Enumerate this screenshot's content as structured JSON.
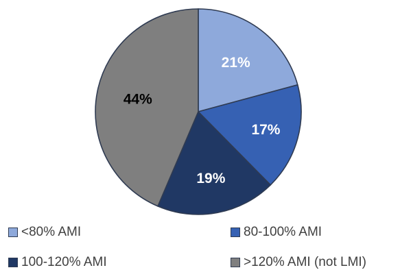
{
  "chart_data": {
    "type": "pie",
    "title": "",
    "slices": [
      {
        "label": "<80% AMI",
        "value": 21,
        "display": "21%",
        "color": "#8EA9DB",
        "label_color": "#ffffff"
      },
      {
        "label": "80-100% AMI",
        "value": 17,
        "display": "17%",
        "color": "#3661B3",
        "label_color": "#ffffff"
      },
      {
        "label": "100-120% AMI",
        "value": 19,
        "display": "19%",
        "color": "#203864",
        "label_color": "#ffffff"
      },
      {
        "label": ">120% AMI (not LMI)",
        "value": 44,
        "display": "44%",
        "color": "#7F7F7F",
        "label_color": "#000000"
      }
    ],
    "legend_position": "bottom"
  }
}
